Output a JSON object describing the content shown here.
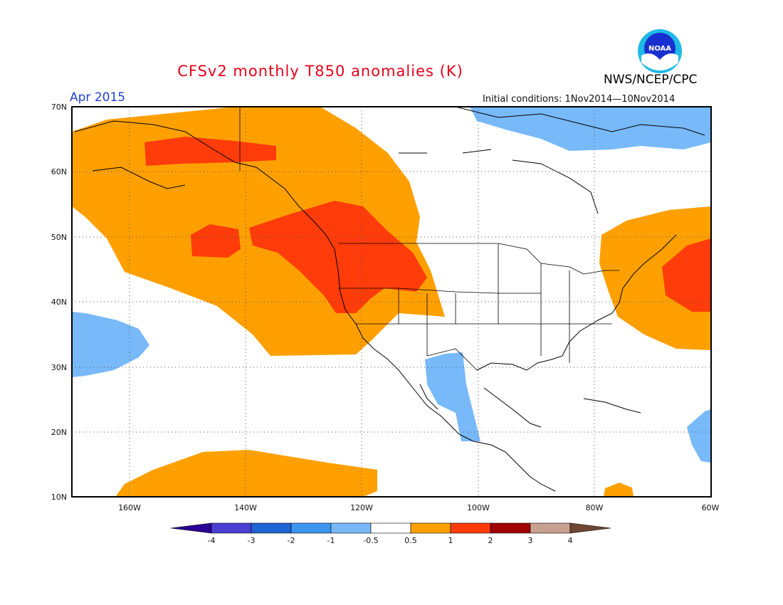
{
  "header": {
    "title": "CFSv2 monthly T850 anomalies (K)",
    "month": "Apr 2015",
    "agency": "NWS/NCEP/CPC",
    "initial_conditions": "Initial conditions: 1Nov2014—10Nov2014",
    "logo_text": "NOAA"
  },
  "map": {
    "lat_labels": [
      "70N",
      "60N",
      "50N",
      "40N",
      "30N",
      "20N",
      "10N"
    ],
    "lon_labels": [
      "160W",
      "140W",
      "120W",
      "100W",
      "80W",
      "60W"
    ],
    "lat_range": [
      10,
      70
    ],
    "lon_range": [
      -170,
      -60
    ],
    "gridlines": true
  },
  "legend": {
    "labels": [
      "-4",
      "-3",
      "-2",
      "-1",
      "-0.5",
      "0.5",
      "1",
      "2",
      "3",
      "4"
    ],
    "colors": [
      "#2a0096",
      "#4b3ed2",
      "#1e64d2",
      "#3c96f0",
      "#78b9fa",
      "#ffffff",
      "#ffa000",
      "#ff3c0a",
      "#a00000",
      "#c8a090",
      "#6e4632"
    ]
  }
}
